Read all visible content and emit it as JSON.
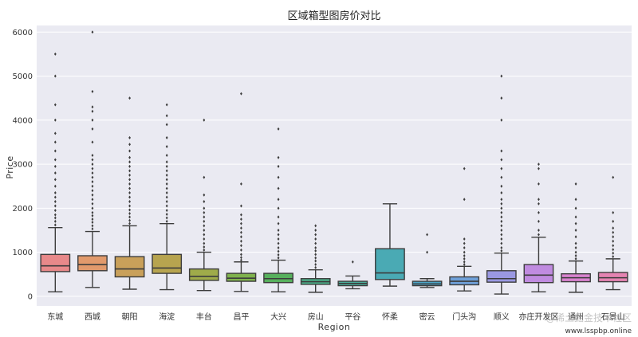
{
  "chart_data": {
    "type": "box",
    "title": "区域箱型图房价对比",
    "xlabel": "Region",
    "ylabel": "Price",
    "ylim": [
      -220,
      6150
    ],
    "yticks": [
      "0",
      "1000",
      "2000",
      "3000",
      "4000",
      "5000",
      "6000"
    ],
    "grid": true,
    "categories": [
      "东城",
      "西城",
      "朝阳",
      "海淀",
      "丰台",
      "昌平",
      "大兴",
      "房山",
      "平谷",
      "怀柔",
      "密云",
      "门头沟",
      "顺义",
      "亦庄开发区",
      "通州",
      "石景山"
    ],
    "colors": [
      "#e8898a",
      "#e29a6c",
      "#c9a05a",
      "#b7a44f",
      "#9fab4a",
      "#7fb24d",
      "#57b05d",
      "#4bb08a",
      "#4aaf9c",
      "#4aaab4",
      "#4ca5c7",
      "#6fa0d9",
      "#9a98e2",
      "#c08be0",
      "#d983cf",
      "#e584b2"
    ],
    "boxes": [
      {
        "min": 100,
        "q1": 560,
        "median": 690,
        "q3": 950,
        "max": 1560,
        "outliers": [
          1620,
          1700,
          1780,
          1850,
          1950,
          2050,
          2150,
          2250,
          2350,
          2500,
          2650,
          2800,
          2950,
          3100,
          3300,
          3500,
          3700,
          4000,
          4350,
          5000,
          5500
        ]
      },
      {
        "min": 200,
        "q1": 580,
        "median": 720,
        "q3": 920,
        "max": 1470,
        "outliers": [
          1530,
          1600,
          1680,
          1750,
          1830,
          1900,
          2000,
          2100,
          2200,
          2300,
          2400,
          2500,
          2600,
          2700,
          2800,
          2900,
          3000,
          3100,
          3200,
          3500,
          3800,
          4000,
          4200,
          4300,
          4650,
          6000
        ]
      },
      {
        "min": 160,
        "q1": 440,
        "median": 620,
        "q3": 900,
        "max": 1600,
        "outliers": [
          1650,
          1720,
          1800,
          1880,
          1960,
          2050,
          2150,
          2250,
          2350,
          2450,
          2550,
          2650,
          2750,
          2850,
          2950,
          3050,
          3150,
          3300,
          3450,
          3600,
          4500
        ]
      },
      {
        "min": 150,
        "q1": 520,
        "median": 640,
        "q3": 950,
        "max": 1650,
        "outliers": [
          1700,
          1780,
          1860,
          1950,
          2050,
          2150,
          2250,
          2350,
          2450,
          2550,
          2650,
          2750,
          2850,
          2950,
          3050,
          3200,
          3400,
          3600,
          3900,
          4100,
          4350
        ]
      },
      {
        "min": 130,
        "q1": 360,
        "median": 450,
        "q3": 620,
        "max": 1000,
        "outliers": [
          1050,
          1120,
          1200,
          1300,
          1400,
          1500,
          1600,
          1700,
          1800,
          1900,
          2000,
          2150,
          2300,
          2700,
          4000
        ]
      },
      {
        "min": 110,
        "q1": 340,
        "median": 410,
        "q3": 520,
        "max": 780,
        "outliers": [
          820,
          880,
          950,
          1050,
          1150,
          1250,
          1350,
          1450,
          1550,
          1650,
          1750,
          1850,
          2050,
          2550,
          4600
        ]
      },
      {
        "min": 100,
        "q1": 310,
        "median": 400,
        "q3": 520,
        "max": 820,
        "outliers": [
          870,
          940,
          1020,
          1100,
          1200,
          1300,
          1400,
          1500,
          1650,
          1800,
          2000,
          2200,
          2450,
          2700,
          2950,
          3150,
          3800
        ]
      },
      {
        "min": 90,
        "q1": 270,
        "median": 330,
        "q3": 400,
        "max": 600,
        "outliers": [
          650,
          720,
          800,
          870,
          950,
          1030,
          1100,
          1200,
          1300,
          1400,
          1500,
          1600
        ]
      },
      {
        "min": 170,
        "q1": 240,
        "median": 290,
        "q3": 340,
        "max": 460,
        "outliers": [
          780
        ]
      },
      {
        "min": 230,
        "q1": 380,
        "median": 530,
        "q3": 1080,
        "max": 2100,
        "outliers": []
      },
      {
        "min": 200,
        "q1": 240,
        "median": 280,
        "q3": 340,
        "max": 400,
        "outliers": [
          1000,
          1400
        ]
      },
      {
        "min": 120,
        "q1": 260,
        "median": 340,
        "q3": 440,
        "max": 680,
        "outliers": [
          720,
          780,
          850,
          920,
          1000,
          1100,
          1200,
          1300,
          2200,
          2900
        ]
      },
      {
        "min": 50,
        "q1": 320,
        "median": 400,
        "q3": 580,
        "max": 980,
        "outliers": [
          1030,
          1100,
          1200,
          1300,
          1400,
          1500,
          1600,
          1700,
          1800,
          1900,
          2000,
          2100,
          2200,
          2350,
          2500,
          2700,
          2900,
          3100,
          3300,
          4000,
          4500,
          5000
        ]
      },
      {
        "min": 100,
        "q1": 310,
        "median": 480,
        "q3": 720,
        "max": 1340,
        "outliers": [
          1400,
          1500,
          1700,
          1900,
          2100,
          2200,
          2550,
          2900,
          3000
        ]
      },
      {
        "min": 90,
        "q1": 330,
        "median": 420,
        "q3": 510,
        "max": 800,
        "outliers": [
          850,
          920,
          1000,
          1100,
          1200,
          1350,
          1500,
          1650,
          1800,
          2000,
          2200,
          2550
        ]
      },
      {
        "min": 150,
        "q1": 330,
        "median": 420,
        "q3": 540,
        "max": 850,
        "outliers": [
          900,
          980,
          1060,
          1150,
          1250,
          1350,
          1450,
          1550,
          1700,
          1900,
          2700
        ]
      }
    ]
  },
  "watermark": {
    "line1": "@稀土掘金技术社区",
    "line2": "www.lsspbp.online"
  }
}
